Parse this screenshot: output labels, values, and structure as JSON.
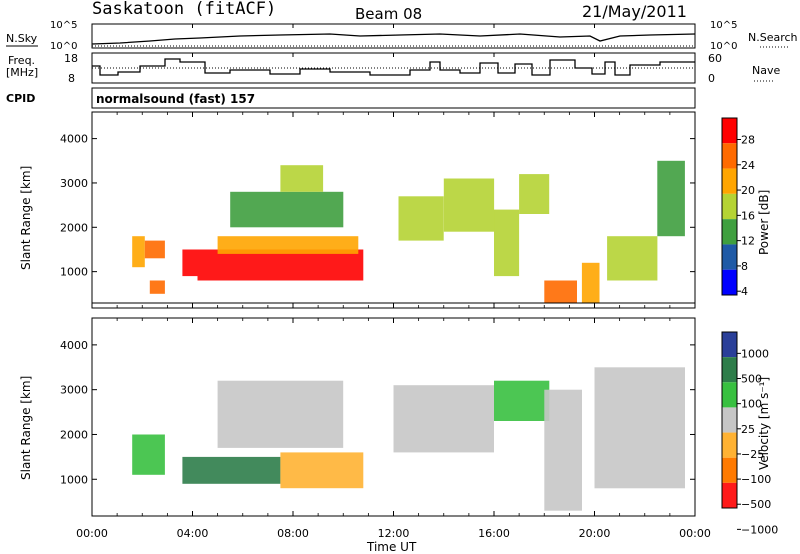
{
  "header": {
    "station": "Saskatoon (fitACF)",
    "beam": "Beam 08",
    "date": "21/May/2011"
  },
  "panels": {
    "nsky": {
      "left_label": "N.Sky",
      "right_label": "N.Search",
      "right_tick_top": "10^5",
      "right_tick_bottom": "10^0",
      "left_tick_top": "10^5",
      "left_tick_bottom": "10^0"
    },
    "freq": {
      "left_label_line1": "Freq.",
      "left_label_line2": "[MHz]",
      "left_tick_top": "18",
      "left_tick_bottom": "8",
      "right_label": "Nave",
      "right_tick_top": "60",
      "right_tick_bottom": "0"
    },
    "cpid": {
      "label": "CPID",
      "value": "normalsound (fast) 157"
    }
  },
  "colorbars": {
    "power": {
      "title": "Power [dB]",
      "ticks": [
        "28",
        "24",
        "20",
        "16",
        "12",
        "8",
        "4"
      ],
      "colors": [
        "#ff0000",
        "#ff6a00",
        "#ffa500",
        "#b5d334",
        "#3f9f3f",
        "#1f5aa6",
        "#0000ff"
      ]
    },
    "velocity": {
      "title": "Velocity [m s⁻¹]",
      "ticks": [
        "1000",
        "500",
        "100",
        "25",
        "−25",
        "−100",
        "−500",
        "−1000"
      ],
      "colors": [
        "#2a3f99",
        "#2e7d4a",
        "#38c040",
        "#c6c6c6",
        "#ffb233",
        "#ff7a00",
        "#ff1a1a"
      ]
    }
  },
  "axes": {
    "ylabel": "Slant Range [km]",
    "xlabel": "Time UT",
    "yticks": [
      "4000",
      "3000",
      "2000",
      "1000"
    ],
    "xticks": [
      "00:00",
      "04:00",
      "08:00",
      "12:00",
      "16:00",
      "20:00",
      "00:00"
    ]
  },
  "chart_data": [
    {
      "type": "heatmap",
      "title": "Power [dB]",
      "xlabel": "Time UT",
      "ylabel": "Slant Range [km]",
      "xlim": [
        "00:00",
        "24:00"
      ],
      "ylim": [
        180,
        4600
      ],
      "color_range": [
        0,
        30
      ],
      "cells": [
        {
          "t0": 1.6,
          "t1": 2.1,
          "r0": 1100,
          "r1": 1800,
          "value": 18
        },
        {
          "t0": 2.1,
          "t1": 2.9,
          "r0": 1300,
          "r1": 1700,
          "value": 24
        },
        {
          "t0": 2.3,
          "t1": 2.9,
          "r0": 500,
          "r1": 800,
          "value": 22
        },
        {
          "t0": 3.6,
          "t1": 4.2,
          "r0": 900,
          "r1": 1500,
          "value": 26
        },
        {
          "t0": 4.2,
          "t1": 10.8,
          "r0": 800,
          "r1": 1500,
          "value": 27
        },
        {
          "t0": 5.0,
          "t1": 10.6,
          "r0": 1400,
          "r1": 1800,
          "value": 18
        },
        {
          "t0": 5.5,
          "t1": 10.0,
          "r0": 2000,
          "r1": 2800,
          "value": 12
        },
        {
          "t0": 7.5,
          "t1": 9.2,
          "r0": 2800,
          "r1": 3400,
          "value": 14
        },
        {
          "t0": 12.2,
          "t1": 14.0,
          "r0": 1700,
          "r1": 2700,
          "value": 13
        },
        {
          "t0": 14.0,
          "t1": 16.0,
          "r0": 1900,
          "r1": 3100,
          "value": 15
        },
        {
          "t0": 16.0,
          "t1": 17.0,
          "r0": 900,
          "r1": 2400,
          "value": 16
        },
        {
          "t0": 17.0,
          "t1": 18.2,
          "r0": 2300,
          "r1": 3200,
          "value": 16
        },
        {
          "t0": 18.0,
          "t1": 19.3,
          "r0": 300,
          "r1": 800,
          "value": 25
        },
        {
          "t0": 19.5,
          "t1": 20.2,
          "r0": 300,
          "r1": 1200,
          "value": 18
        },
        {
          "t0": 20.5,
          "t1": 22.5,
          "r0": 800,
          "r1": 1800,
          "value": 14
        },
        {
          "t0": 22.5,
          "t1": 23.6,
          "r0": 1800,
          "r1": 3500,
          "value": 10
        }
      ]
    },
    {
      "type": "heatmap",
      "title": "Velocity [m s⁻¹]",
      "xlabel": "Time UT",
      "ylabel": "Slant Range [km]",
      "xlim": [
        "00:00",
        "24:00"
      ],
      "ylim": [
        180,
        4600
      ],
      "color_range": [
        -1000,
        1000
      ],
      "cells": [
        {
          "t0": 1.6,
          "t1": 2.9,
          "r0": 1100,
          "r1": 2000,
          "value": 150
        },
        {
          "t0": 3.6,
          "t1": 7.5,
          "r0": 900,
          "r1": 1500,
          "value": 600
        },
        {
          "t0": 7.5,
          "t1": 10.8,
          "r0": 800,
          "r1": 1600,
          "value": -300
        },
        {
          "t0": 5.0,
          "t1": 10.0,
          "r0": 1700,
          "r1": 3200,
          "value": 0
        },
        {
          "t0": 12.0,
          "t1": 16.0,
          "r0": 1600,
          "r1": 3100,
          "value": 0
        },
        {
          "t0": 16.0,
          "t1": 18.2,
          "r0": 2300,
          "r1": 3200,
          "value": 300
        },
        {
          "t0": 18.0,
          "t1": 19.5,
          "r0": 300,
          "r1": 3000,
          "value": 0
        },
        {
          "t0": 20.0,
          "t1": 23.6,
          "r0": 800,
          "r1": 3500,
          "value": 0
        }
      ]
    }
  ]
}
